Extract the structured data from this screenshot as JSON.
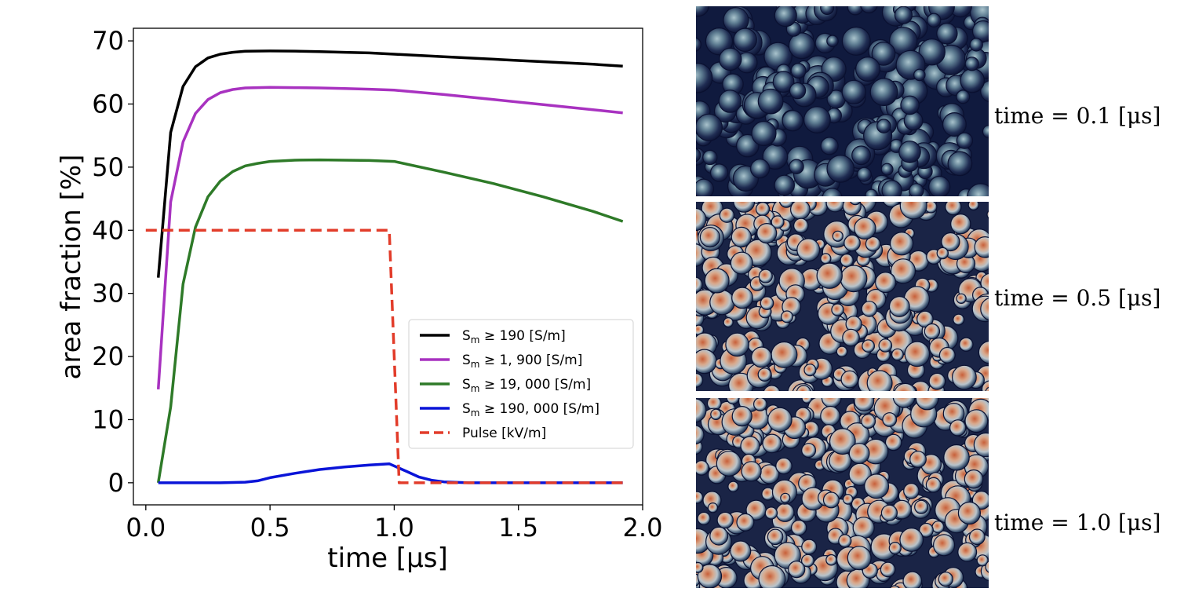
{
  "chart_data": {
    "type": "line",
    "xlabel": "time [µs]",
    "ylabel": "area fraction [%]",
    "xlim": [
      -0.05,
      2.0
    ],
    "ylim": [
      -3.5,
      72
    ],
    "xticks": [
      0.0,
      0.5,
      1.0,
      1.5,
      2.0
    ],
    "xtick_labels": [
      "0.0",
      "0.5",
      "1.0",
      "1.5",
      "2.0"
    ],
    "yticks": [
      0,
      10,
      20,
      30,
      40,
      50,
      60,
      70
    ],
    "ytick_labels": [
      "0",
      "10",
      "20",
      "30",
      "40",
      "50",
      "60",
      "70"
    ],
    "legend_position": "lower-right",
    "series": [
      {
        "name": "S_m ≥ 190 [S/m]",
        "legend_parts": [
          "S",
          "m",
          " ≥ 190 [S/m]"
        ],
        "color": "#000000",
        "style": "solid",
        "x": [
          0.05,
          0.1,
          0.15,
          0.2,
          0.25,
          0.3,
          0.35,
          0.4,
          0.5,
          0.6,
          0.7,
          0.8,
          0.9,
          1.0,
          1.2,
          1.4,
          1.6,
          1.8,
          1.92
        ],
        "y": [
          32.5,
          55.5,
          62.8,
          65.9,
          67.3,
          67.9,
          68.2,
          68.35,
          68.4,
          68.38,
          68.3,
          68.2,
          68.1,
          67.9,
          67.5,
          67.1,
          66.7,
          66.3,
          66.0
        ]
      },
      {
        "name": "S_m ≥ 1,900 [S/m]",
        "legend_parts": [
          "S",
          "m",
          " ≥ 1, 900 [S/m]"
        ],
        "color": "#a832c0",
        "style": "solid",
        "x": [
          0.05,
          0.1,
          0.15,
          0.2,
          0.25,
          0.3,
          0.35,
          0.4,
          0.5,
          0.6,
          0.7,
          0.8,
          0.9,
          1.0,
          1.2,
          1.4,
          1.6,
          1.8,
          1.92
        ],
        "y": [
          14.8,
          44.5,
          54.0,
          58.5,
          60.7,
          61.8,
          62.3,
          62.55,
          62.65,
          62.6,
          62.55,
          62.45,
          62.35,
          62.2,
          61.5,
          60.7,
          59.9,
          59.1,
          58.6
        ]
      },
      {
        "name": "S_m ≥ 19,000 [S/m]",
        "legend_parts": [
          "S",
          "m",
          " ≥ 19, 000 [S/m]"
        ],
        "color": "#2e7a28",
        "style": "solid",
        "x": [
          0.05,
          0.1,
          0.15,
          0.2,
          0.25,
          0.3,
          0.35,
          0.4,
          0.45,
          0.5,
          0.6,
          0.7,
          0.8,
          0.9,
          1.0,
          1.2,
          1.4,
          1.6,
          1.8,
          1.92
        ],
        "y": [
          0.0,
          12.0,
          31.5,
          40.5,
          45.3,
          47.8,
          49.3,
          50.2,
          50.6,
          50.9,
          51.1,
          51.15,
          51.1,
          51.05,
          50.9,
          49.2,
          47.4,
          45.3,
          43.0,
          41.4
        ]
      },
      {
        "name": "S_m ≥ 190,000 [S/m]",
        "legend_parts": [
          "S",
          "m",
          " ≥ 190, 000 [S/m]"
        ],
        "color": "#0a14d8",
        "style": "solid",
        "x": [
          0.05,
          0.1,
          0.2,
          0.3,
          0.4,
          0.45,
          0.5,
          0.6,
          0.7,
          0.8,
          0.9,
          0.98,
          1.05,
          1.1,
          1.15,
          1.2,
          1.3,
          1.5,
          1.7,
          1.92
        ],
        "y": [
          0.0,
          0.0,
          0.0,
          0.0,
          0.1,
          0.3,
          0.8,
          1.5,
          2.1,
          2.5,
          2.8,
          3.0,
          1.8,
          0.9,
          0.4,
          0.15,
          0.0,
          0.0,
          0.0,
          0.0
        ]
      },
      {
        "name": "Pulse [kV/m]",
        "legend_parts": [
          "Pulse [kV/m]",
          "",
          ""
        ],
        "color": "#e23c2a",
        "style": "dashed",
        "x": [
          0.0,
          0.05,
          0.98,
          1.02,
          1.92
        ],
        "y": [
          40,
          40,
          40,
          0,
          0
        ]
      }
    ]
  },
  "panels": [
    {
      "caption": "time = 0.1 [μs]",
      "color_map": "dark"
    },
    {
      "caption": "time = 0.5 [μs]",
      "color_map": "warm"
    },
    {
      "caption": "time = 1.0 [μs]",
      "color_map": "warm"
    }
  ]
}
